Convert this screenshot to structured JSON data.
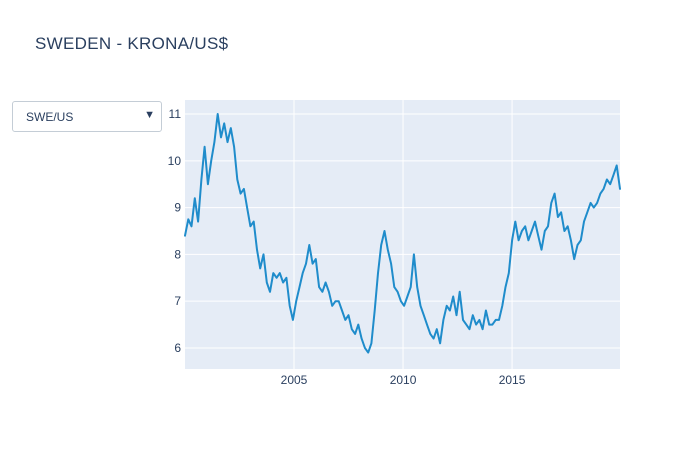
{
  "title": "SWEDEN - KRONA/US$",
  "dropdown": {
    "selected": "SWE/US",
    "arrow_icon": "triangle-down-icon"
  },
  "colors": {
    "plot_bg": "#e5ecf6",
    "grid": "#ffffff",
    "line": "#1f8ccb",
    "text": "#2a3f5f"
  },
  "chart_data": {
    "type": "line",
    "title": "SWEDEN - KRONA/US$",
    "xlabel": "",
    "ylabel": "",
    "xlim": [
      2000.0,
      2019.95
    ],
    "ylim": [
      5.55,
      11.3
    ],
    "x_ticks": [
      2005,
      2010,
      2015
    ],
    "x_tick_labels": [
      "2005",
      "2010",
      "2015"
    ],
    "y_ticks": [
      6,
      7,
      8,
      9,
      10,
      11
    ],
    "y_tick_labels": [
      "6",
      "7",
      "8",
      "9",
      "10",
      "11"
    ],
    "grid": true,
    "legend": "none",
    "series": [
      {
        "x": [
          2000.0,
          2000.15,
          2000.3,
          2000.45,
          2000.6,
          2000.75,
          2000.9,
          2001.05,
          2001.2,
          2001.35,
          2001.5,
          2001.65,
          2001.8,
          2001.95,
          2002.1,
          2002.25,
          2002.4,
          2002.55,
          2002.7,
          2002.85,
          2003.0,
          2003.15,
          2003.3,
          2003.45,
          2003.6,
          2003.75,
          2003.9,
          2004.05,
          2004.2,
          2004.35,
          2004.5,
          2004.65,
          2004.8,
          2004.95,
          2005.1,
          2005.25,
          2005.4,
          2005.55,
          2005.7,
          2005.85,
          2006.0,
          2006.15,
          2006.3,
          2006.45,
          2006.6,
          2006.75,
          2006.9,
          2007.05,
          2007.2,
          2007.35,
          2007.5,
          2007.65,
          2007.8,
          2007.95,
          2008.1,
          2008.25,
          2008.4,
          2008.55,
          2008.7,
          2008.85,
          2009.0,
          2009.15,
          2009.3,
          2009.45,
          2009.6,
          2009.75,
          2009.9,
          2010.05,
          2010.2,
          2010.35,
          2010.5,
          2010.65,
          2010.8,
          2010.95,
          2011.1,
          2011.25,
          2011.4,
          2011.55,
          2011.7,
          2011.85,
          2012.0,
          2012.15,
          2012.3,
          2012.45,
          2012.6,
          2012.75,
          2012.9,
          2013.05,
          2013.2,
          2013.35,
          2013.5,
          2013.65,
          2013.8,
          2013.95,
          2014.1,
          2014.25,
          2014.4,
          2014.55,
          2014.7,
          2014.85,
          2015.0,
          2015.15,
          2015.3,
          2015.45,
          2015.6,
          2015.75,
          2015.9,
          2016.05,
          2016.2,
          2016.35,
          2016.5,
          2016.65,
          2016.8,
          2016.95,
          2017.1,
          2017.25,
          2017.4,
          2017.55,
          2017.7,
          2017.85,
          2018.0,
          2018.15,
          2018.3,
          2018.45,
          2018.6,
          2018.75,
          2018.9,
          2019.05,
          2019.2,
          2019.35,
          2019.5,
          2019.65,
          2019.8,
          2019.95
        ],
        "y": [
          8.4,
          8.75,
          8.6,
          9.2,
          8.7,
          9.6,
          10.3,
          9.5,
          10.0,
          10.4,
          11.0,
          10.5,
          10.8,
          10.4,
          10.7,
          10.3,
          9.6,
          9.3,
          9.4,
          9.0,
          8.6,
          8.7,
          8.1,
          7.7,
          8.0,
          7.4,
          7.2,
          7.6,
          7.5,
          7.6,
          7.4,
          7.5,
          6.9,
          6.6,
          7.0,
          7.3,
          7.6,
          7.8,
          8.2,
          7.8,
          7.9,
          7.3,
          7.2,
          7.4,
          7.2,
          6.9,
          7.0,
          7.0,
          6.8,
          6.6,
          6.7,
          6.4,
          6.3,
          6.5,
          6.2,
          6.0,
          5.9,
          6.1,
          6.8,
          7.6,
          8.2,
          8.5,
          8.1,
          7.8,
          7.3,
          7.2,
          7.0,
          6.9,
          7.1,
          7.3,
          8.0,
          7.3,
          6.9,
          6.7,
          6.5,
          6.3,
          6.2,
          6.4,
          6.1,
          6.6,
          6.9,
          6.8,
          7.1,
          6.7,
          7.2,
          6.6,
          6.5,
          6.4,
          6.7,
          6.5,
          6.6,
          6.4,
          6.8,
          6.5,
          6.5,
          6.6,
          6.6,
          6.9,
          7.3,
          7.6,
          8.3,
          8.7,
          8.3,
          8.5,
          8.6,
          8.3,
          8.5,
          8.7,
          8.4,
          8.1,
          8.5,
          8.6,
          9.1,
          9.3,
          8.8,
          8.9,
          8.5,
          8.6,
          8.3,
          7.9,
          8.2,
          8.3,
          8.7,
          8.9,
          9.1,
          9.0,
          9.1,
          9.3,
          9.4,
          9.6,
          9.5,
          9.7,
          9.9,
          9.4
        ]
      }
    ]
  }
}
